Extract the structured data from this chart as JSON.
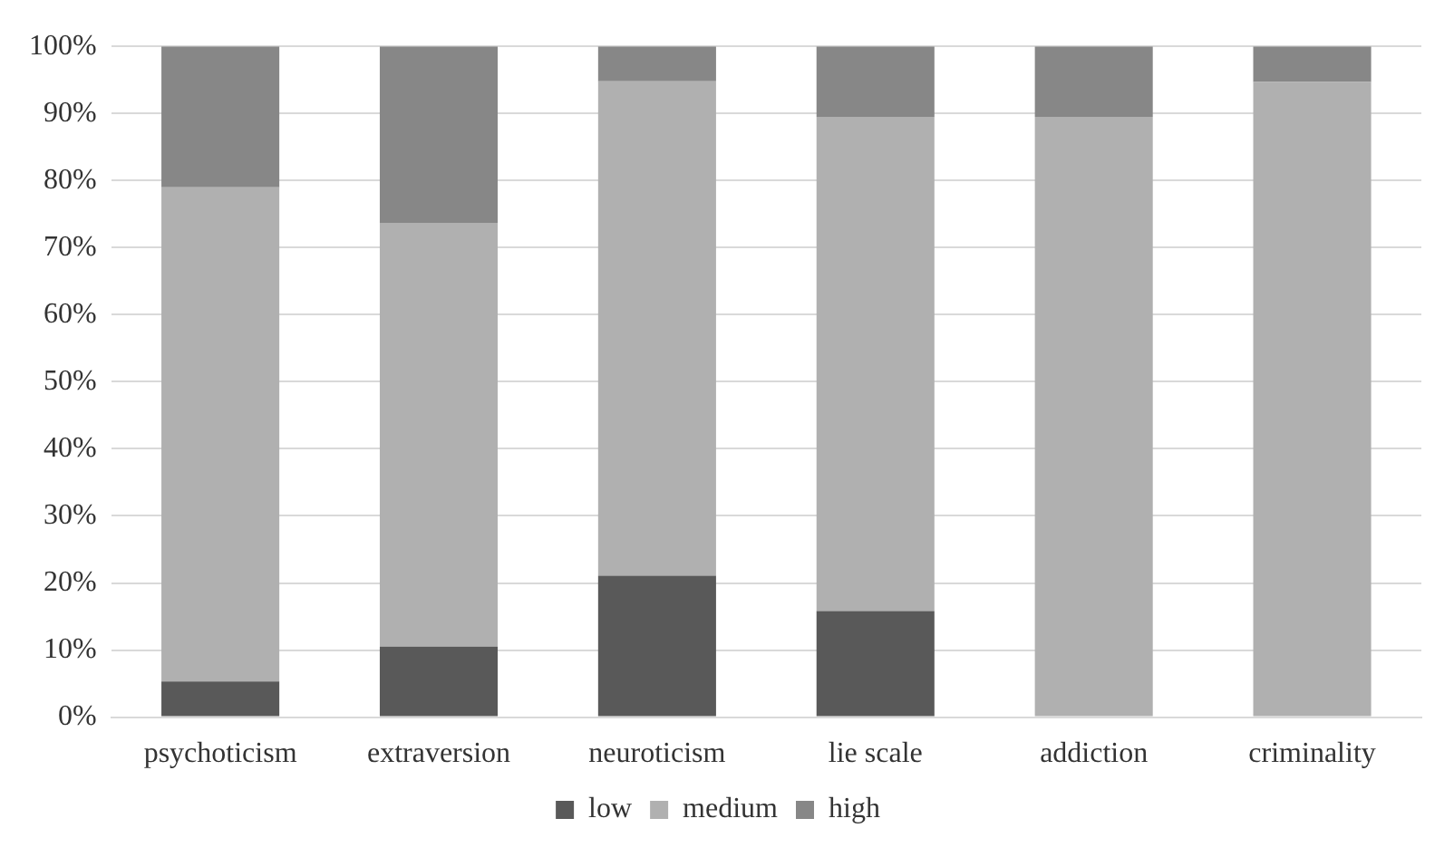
{
  "chart_data": {
    "type": "bar",
    "stacked": true,
    "categories": [
      "psychoticism",
      "extraversion",
      "neuroticism",
      "lie scale",
      "addiction",
      "criminality"
    ],
    "series": [
      {
        "name": "low",
        "color": "#595959",
        "values": [
          5.3,
          10.5,
          21.1,
          15.8,
          0,
          0
        ]
      },
      {
        "name": "medium",
        "color": "#b0b0b0",
        "values": [
          73.7,
          63.2,
          73.7,
          73.7,
          89.5,
          94.7
        ]
      },
      {
        "name": "high",
        "color": "#878787",
        "values": [
          21,
          26.3,
          5.2,
          10.5,
          10.5,
          5.3
        ]
      }
    ],
    "ylim": [
      0,
      100
    ],
    "yticks": [
      {
        "value": 0,
        "label": "0%"
      },
      {
        "value": 10,
        "label": "10%"
      },
      {
        "value": 20,
        "label": "20%"
      },
      {
        "value": 30,
        "label": "30%"
      },
      {
        "value": 40,
        "label": "40%"
      },
      {
        "value": 50,
        "label": "50%"
      },
      {
        "value": 60,
        "label": "60%"
      },
      {
        "value": 70,
        "label": "70%"
      },
      {
        "value": 80,
        "label": "80%"
      },
      {
        "value": 90,
        "label": "90%"
      },
      {
        "value": 100,
        "label": "100%"
      }
    ],
    "grid": "y",
    "legend": "bottom"
  }
}
